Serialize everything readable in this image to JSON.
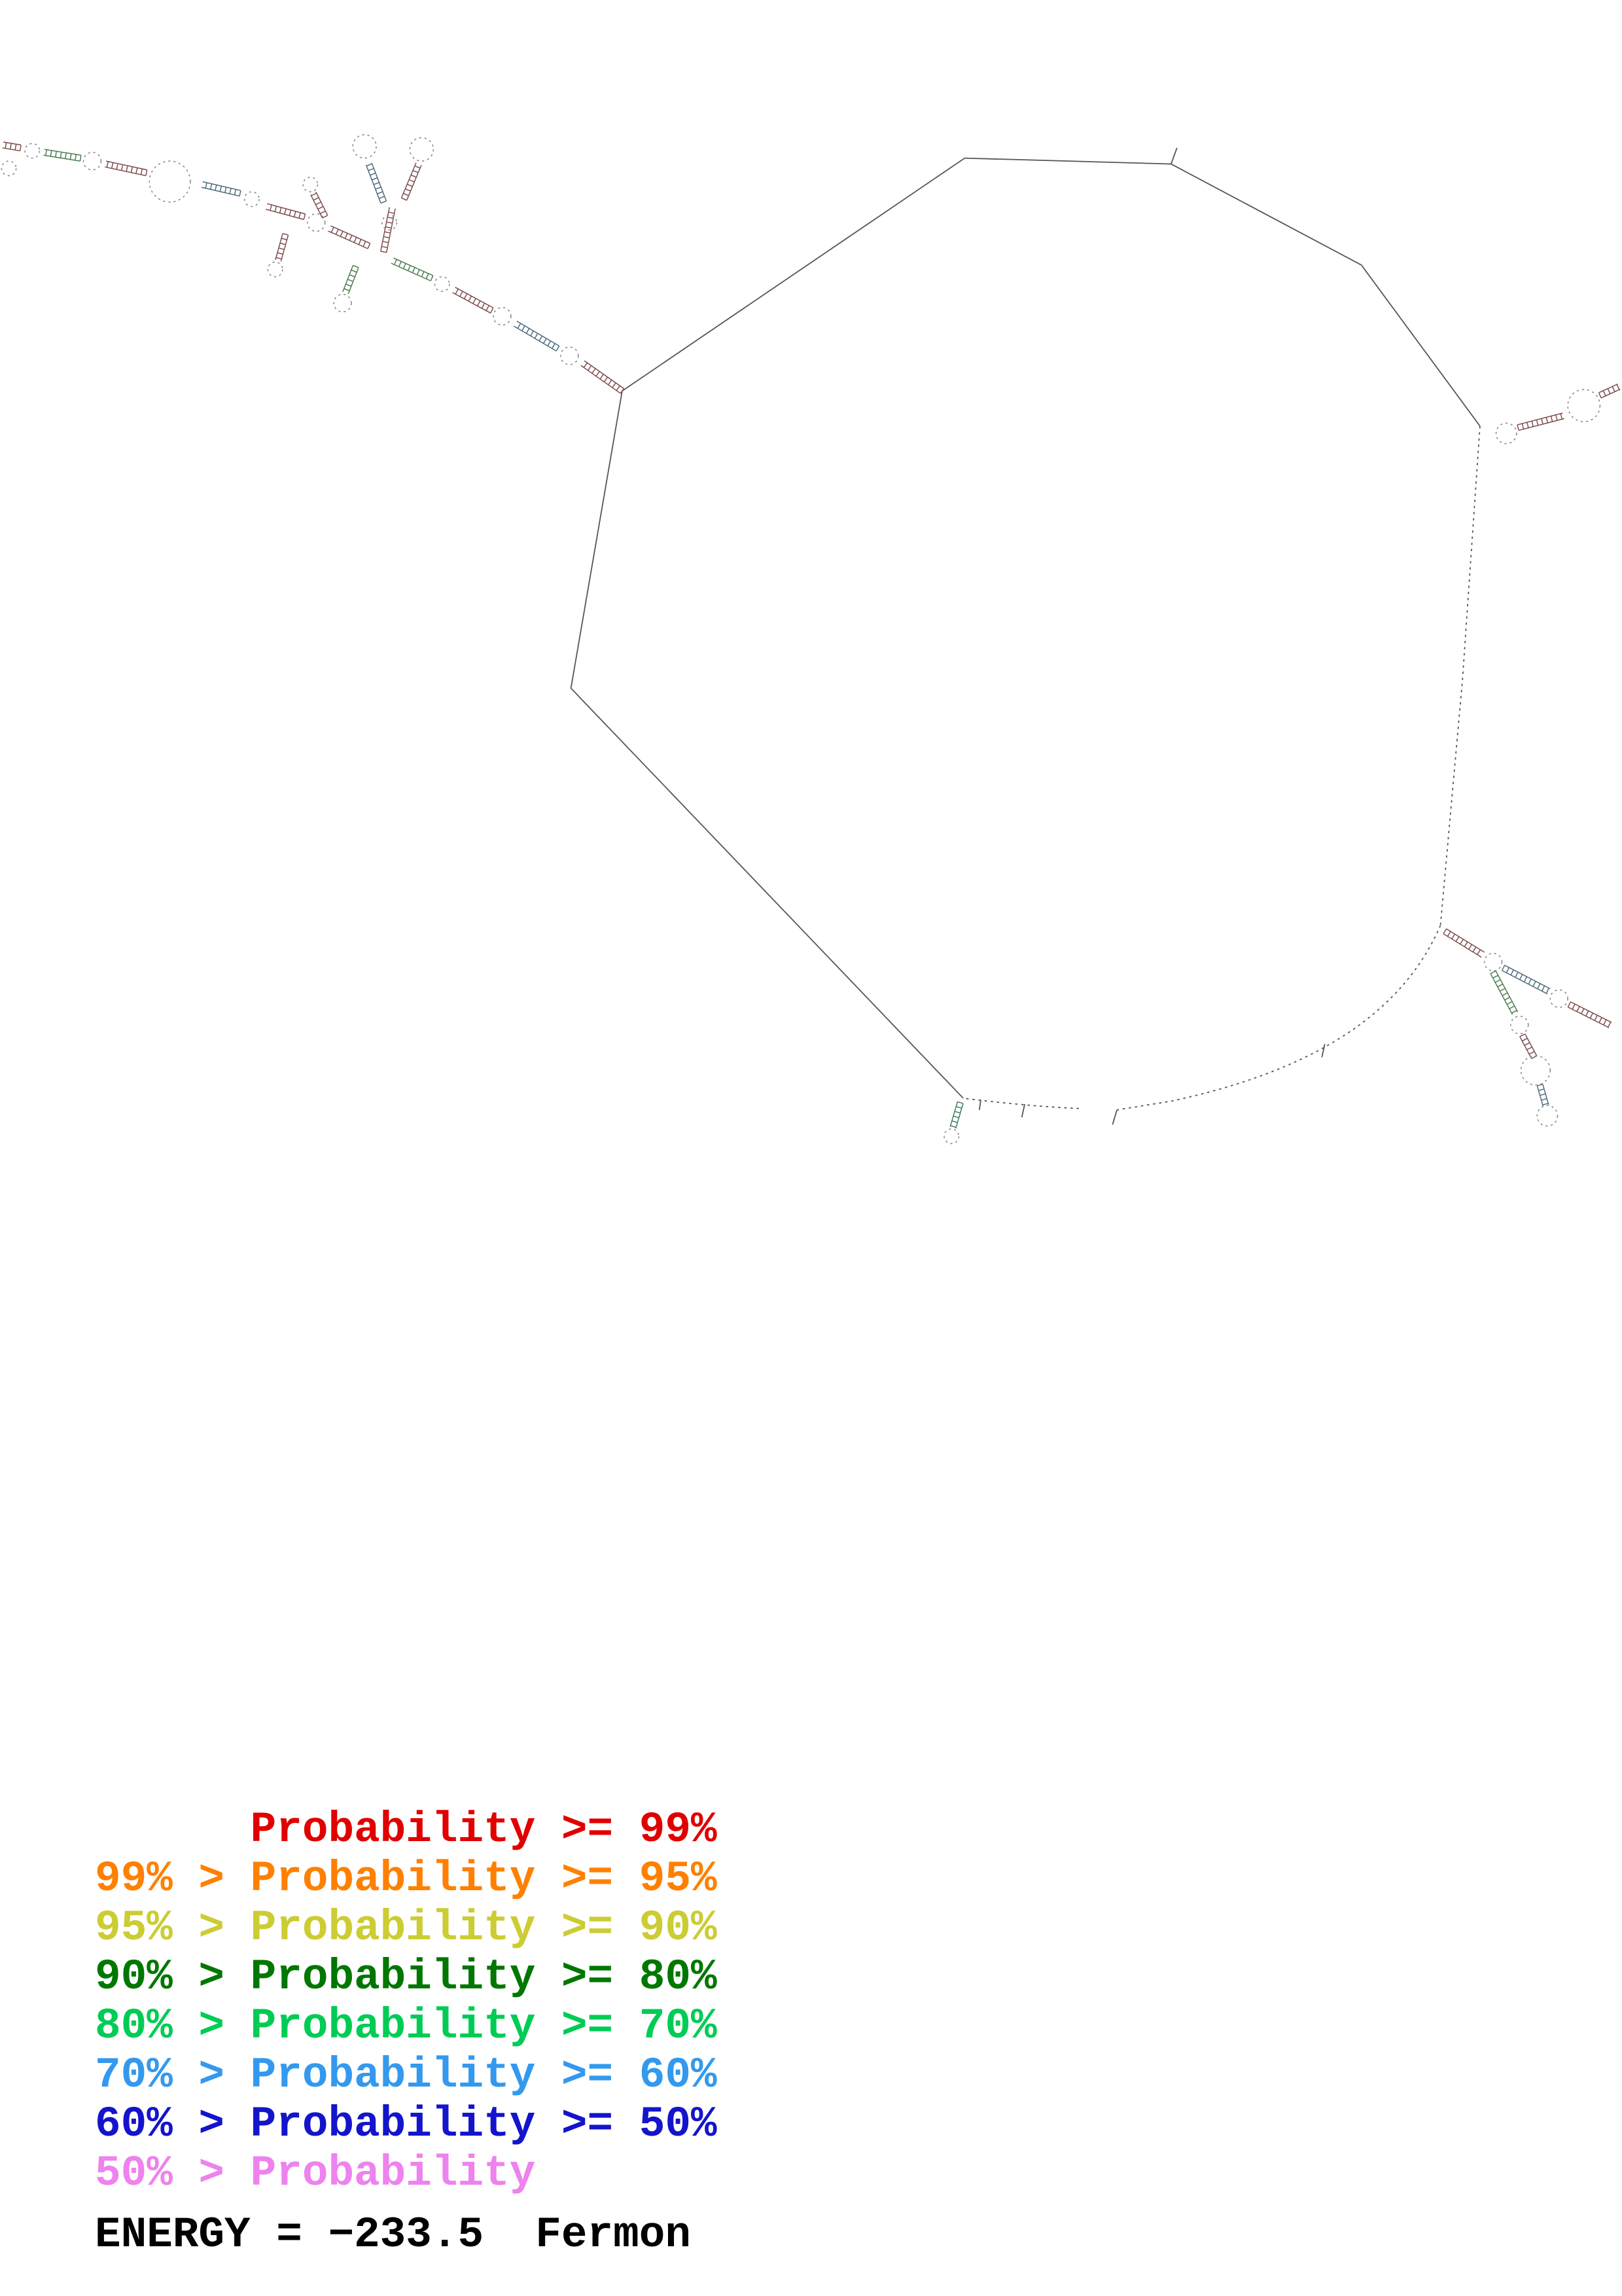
{
  "legend": {
    "items": [
      {
        "text": "      Probability >= 99%",
        "color": "#e00000"
      },
      {
        "text": "99% > Probability >= 95%",
        "color": "#ff8000"
      },
      {
        "text": "95% > Probability >= 90%",
        "color": "#cccc33"
      },
      {
        "text": "90% > Probability >= 80%",
        "color": "#007700"
      },
      {
        "text": "80% > Probability >= 70%",
        "color": "#00cc55"
      },
      {
        "text": "70% > Probability >= 60%",
        "color": "#3399ee"
      },
      {
        "text": "60% > Probability >= 50%",
        "color": "#1414cc"
      },
      {
        "text": "50% > Probability",
        "color": "#ee82ee"
      }
    ]
  },
  "energy": {
    "text": "ENERGY = −233.5  Fermon"
  }
}
